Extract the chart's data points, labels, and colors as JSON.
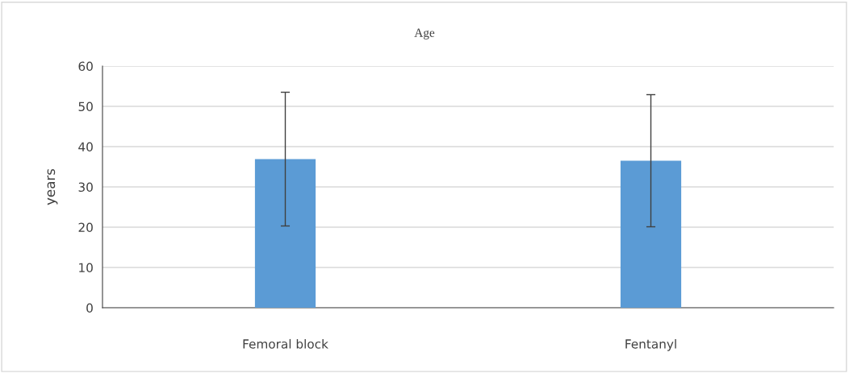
{
  "chart_data": {
    "type": "bar",
    "title": "Age",
    "ylabel": "years",
    "categories": [
      "Femoral block",
      "Fentanyl"
    ],
    "values": [
      36.9,
      36.5
    ],
    "errors": [
      16.6,
      16.4
    ],
    "color": "#5b9bd5",
    "ylim": [
      0,
      60
    ],
    "yticks": [
      0,
      10,
      20,
      30,
      40,
      50,
      60
    ],
    "grid": "y",
    "legend": false
  }
}
